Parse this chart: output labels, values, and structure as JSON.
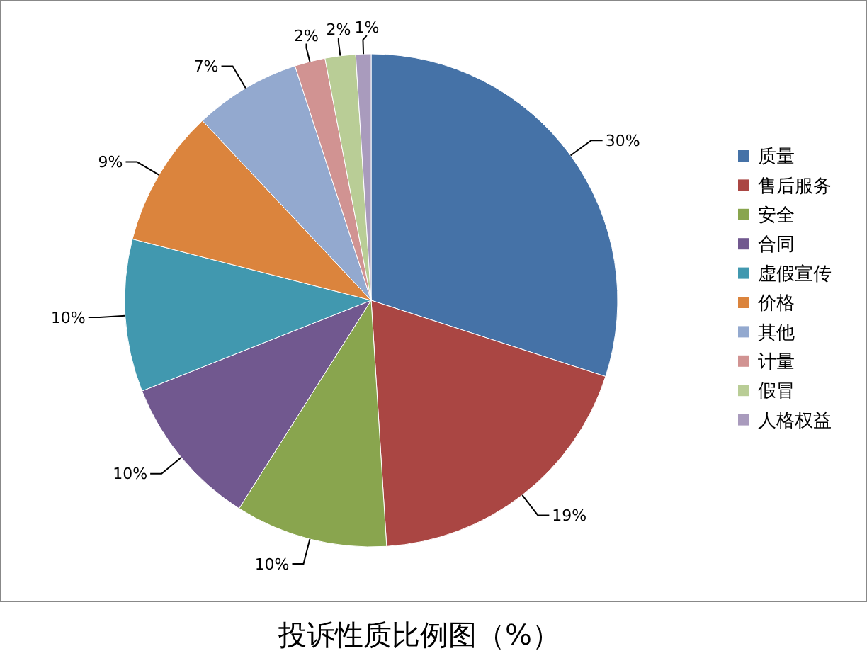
{
  "chart_data": {
    "type": "pie",
    "title": "投诉性质比例图（%）",
    "categories": [
      "质量",
      "售后服务",
      "安全",
      "合同",
      "虚假宣传",
      "价格",
      "其他",
      "计量",
      "假冒",
      "人格权益"
    ],
    "values": [
      30,
      19,
      10,
      10,
      10,
      9,
      7,
      2,
      2,
      1
    ],
    "value_labels": [
      "30%",
      "19%",
      "10%",
      "10%",
      "10%",
      "9%",
      "7%",
      "2%",
      "2%",
      "1%"
    ],
    "colors": [
      "#4572a7",
      "#aa4643",
      "#89a54e",
      "#71588f",
      "#4198af",
      "#db843d",
      "#93a9cf",
      "#d19392",
      "#b9cd96",
      "#a99bbd"
    ],
    "legend": "right"
  }
}
